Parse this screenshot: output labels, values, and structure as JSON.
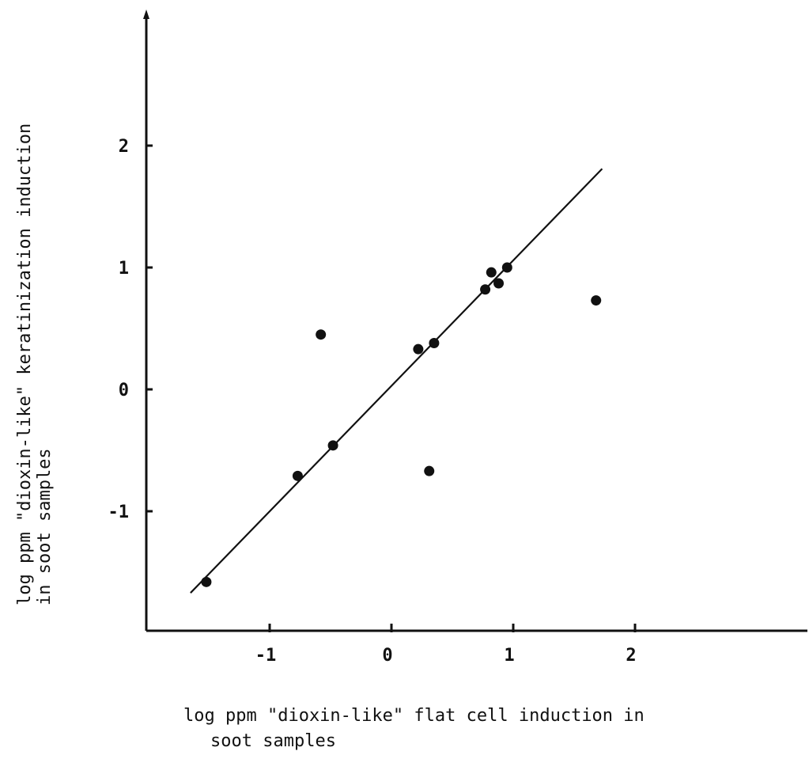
{
  "chart_data": {
    "type": "scatter",
    "title": "",
    "xlabel": [
      "log ppm \"dioxin-like\" flat cell induction in",
      "soot samples"
    ],
    "ylabel": [
      "log ppm \"dioxin-like\" keratinization induction",
      "in soot samples"
    ],
    "xlim": [
      -2.0,
      3.4
    ],
    "ylim": [
      -2.0,
      3.2
    ],
    "xticks": [
      -1,
      0,
      1,
      2
    ],
    "xtick_labels": [
      "-1",
      "0",
      "1",
      "2"
    ],
    "yticks": [
      -1,
      0,
      1,
      2
    ],
    "ytick_labels": [
      "-1",
      "0",
      "1",
      "2"
    ],
    "grid": false,
    "points": [
      {
        "x": -1.52,
        "y": -1.58
      },
      {
        "x": -0.77,
        "y": -0.71
      },
      {
        "x": -0.58,
        "y": 0.45
      },
      {
        "x": -0.48,
        "y": -0.46
      },
      {
        "x": 0.22,
        "y": 0.33
      },
      {
        "x": 0.31,
        "y": -0.67
      },
      {
        "x": 0.35,
        "y": 0.38
      },
      {
        "x": 0.77,
        "y": 0.82
      },
      {
        "x": 0.82,
        "y": 0.96
      },
      {
        "x": 0.88,
        "y": 0.87
      },
      {
        "x": 0.95,
        "y": 1.0
      },
      {
        "x": 1.68,
        "y": 0.73
      }
    ],
    "fit_line": {
      "x": [
        -1.65,
        1.73
      ],
      "y": [
        -1.67,
        1.81
      ]
    }
  }
}
